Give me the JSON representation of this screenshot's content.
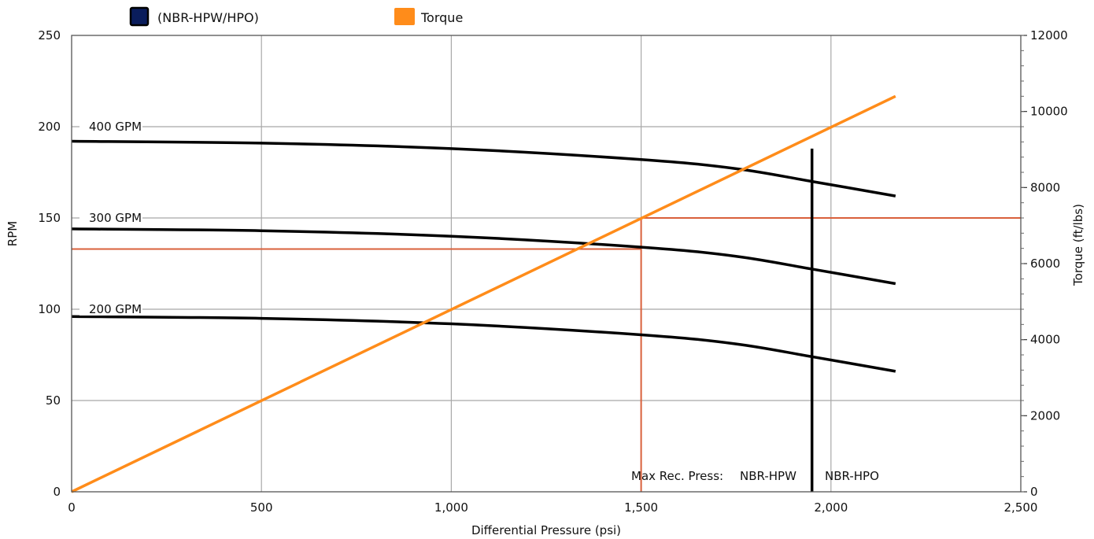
{
  "chart_data": {
    "type": "line",
    "xlabel": "Differential Pressure (psi)",
    "ylabel": "RPM",
    "y2label": "Torque (ft/lbs)",
    "xlim": [
      0,
      2500
    ],
    "ylim": [
      0,
      250
    ],
    "y2lim": [
      0,
      12000
    ],
    "x_ticks": [
      "0",
      "500",
      "1,000",
      "1,500",
      "2,000",
      "2,500"
    ],
    "x_tick_values": [
      0,
      500,
      1000,
      1500,
      2000,
      2500
    ],
    "y_ticks": [
      "0",
      "50",
      "100",
      "150",
      "200",
      "250"
    ],
    "y_tick_values": [
      0,
      50,
      100,
      150,
      200,
      250
    ],
    "y2_ticks": [
      "0",
      "2000",
      "4000",
      "6000",
      "8000",
      "10000",
      "12000"
    ],
    "y2_tick_values": [
      0,
      2000,
      4000,
      6000,
      8000,
      10000,
      12000
    ],
    "grid": true,
    "legend_position": "top-left",
    "legend": [
      {
        "label": "(NBR-HPW/HPO)",
        "color": "#0a1d5c"
      },
      {
        "label": "Torque",
        "color": "#ff8c1a"
      }
    ],
    "series": [
      {
        "label": "400 GPM",
        "axis": "left",
        "color": "#000000",
        "points": [
          [
            0,
            192
          ],
          [
            500,
            191
          ],
          [
            1000,
            188
          ],
          [
            1500,
            182
          ],
          [
            1750,
            177
          ],
          [
            1950,
            170
          ],
          [
            2170,
            162
          ]
        ]
      },
      {
        "label": "300 GPM",
        "axis": "left",
        "color": "#000000",
        "points": [
          [
            0,
            144
          ],
          [
            500,
            143
          ],
          [
            1000,
            140
          ],
          [
            1500,
            134
          ],
          [
            1750,
            129
          ],
          [
            1950,
            122
          ],
          [
            2170,
            114
          ]
        ]
      },
      {
        "label": "200 GPM",
        "axis": "left",
        "color": "#000000",
        "points": [
          [
            0,
            96
          ],
          [
            500,
            95
          ],
          [
            1000,
            92
          ],
          [
            1500,
            86
          ],
          [
            1750,
            81
          ],
          [
            1950,
            74
          ],
          [
            2170,
            66
          ]
        ]
      },
      {
        "name": "Torque",
        "axis": "right",
        "color": "#ff8c1a",
        "points": [
          [
            0,
            0
          ],
          [
            2170,
            10400
          ]
        ]
      }
    ],
    "guides": {
      "color": "#d9603b",
      "vertical_x": 1500,
      "horizontal_rpm": 133,
      "horizontal_torque": 7200
    },
    "max_pressure_line": {
      "x": 1950,
      "top_rpm": 188,
      "color": "#000000"
    },
    "annotations": {
      "prefix": "Max Rec. Press:",
      "hpw": "NBR-HPW",
      "hpo": "NBR-HPO"
    }
  }
}
